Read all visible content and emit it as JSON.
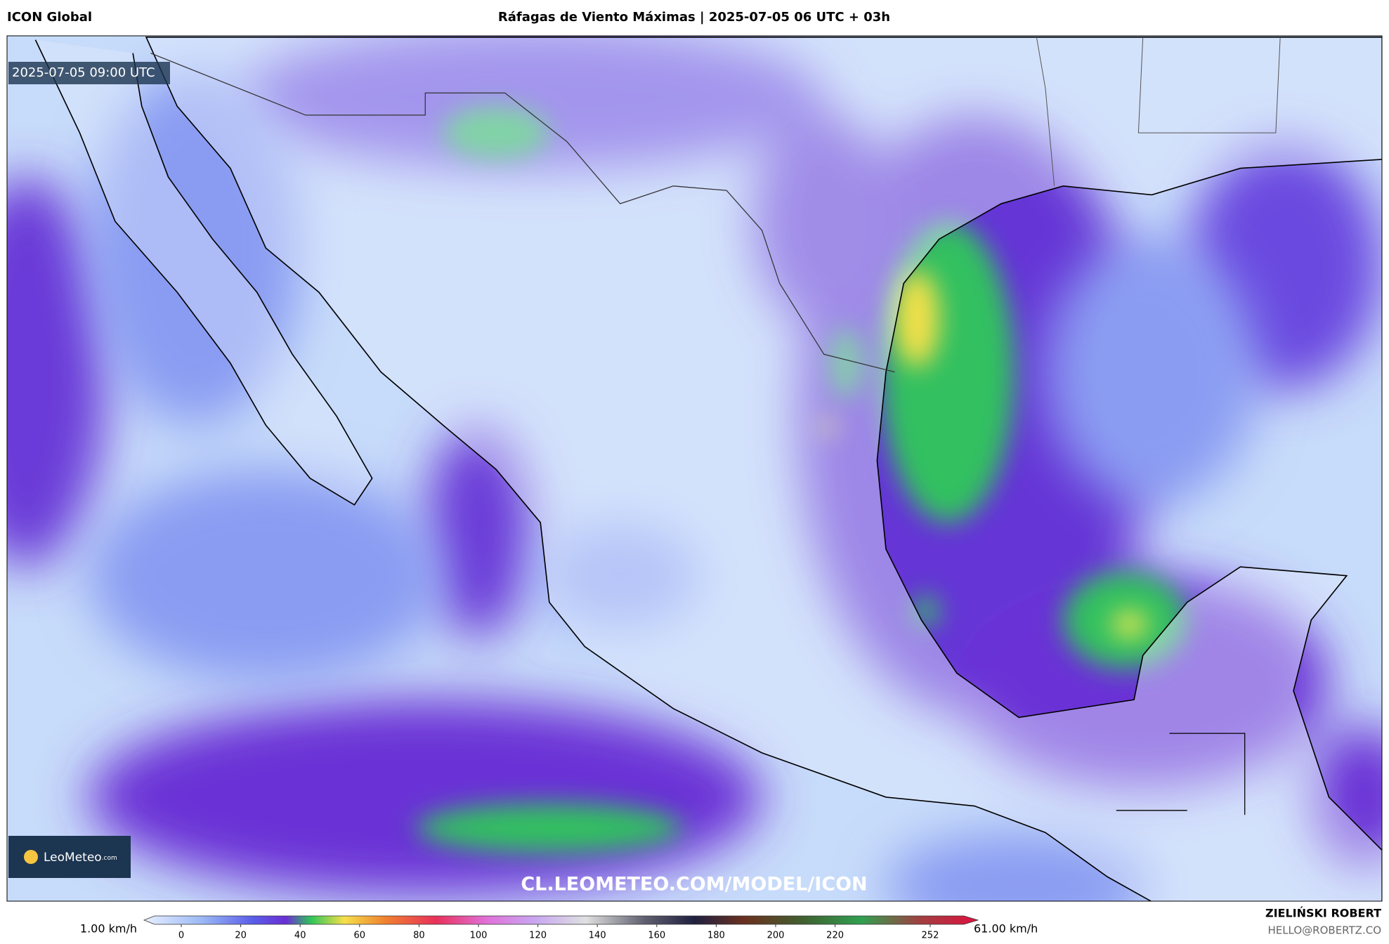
{
  "header": {
    "source": "ICON Global",
    "title": "Ráfagas de Viento Máximas | 2025-07-05 06 UTC + 03h"
  },
  "map": {
    "timestamp": "2025-07-05 09:00 UTC",
    "logo": "LeoMeteo",
    "logo_suffix": ".com",
    "watermark": "CL.LEOMETEO.COM/MODEL/ICON"
  },
  "legend": {
    "min_label": "1.00 km/h",
    "max_label": "61.00 km/h",
    "ticks": [
      0,
      20,
      40,
      60,
      80,
      100,
      120,
      140,
      160,
      180,
      200,
      220,
      252
    ]
  },
  "credits": {
    "author": "ZIELIŃSKI ROBERT",
    "email": "HELLO@ROBERTZ.CO"
  }
}
